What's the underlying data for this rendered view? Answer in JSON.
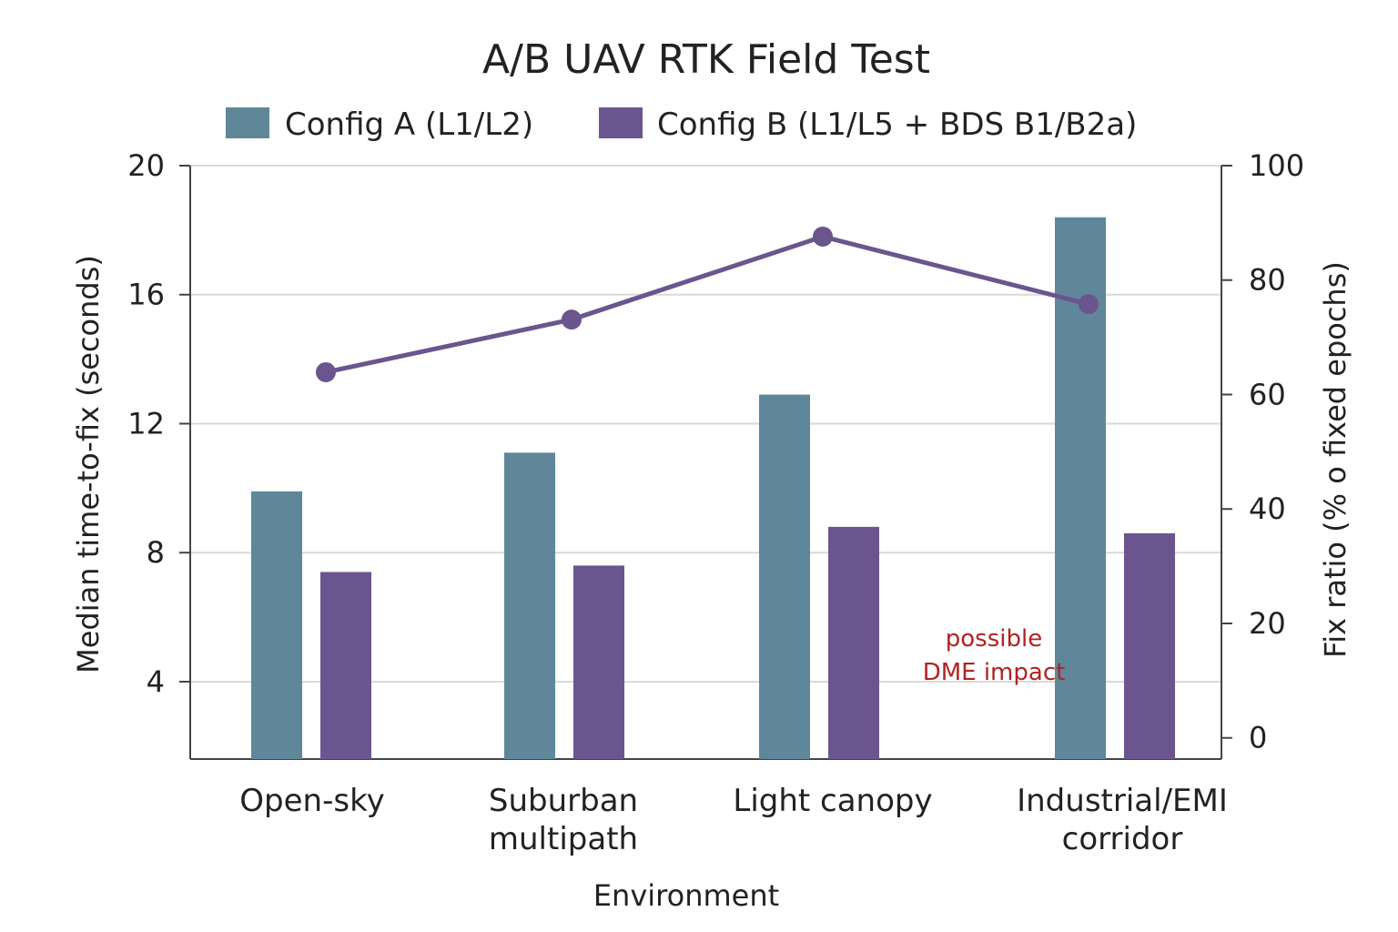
{
  "chart_data": {
    "type": "bar",
    "title": "A/B UAV RTK Field Test",
    "xlabel": "Environment",
    "ylabel": "Median time-to-fix (seconds)",
    "y2label": "Fix ratio (% o fixed epochs)",
    "categories": [
      [
        "Open-sky"
      ],
      [
        "Suburban",
        "multipath"
      ],
      [
        "Light canopy"
      ],
      [
        "Industrial/EMI",
        "corridor"
      ]
    ],
    "series": [
      {
        "name": "Config A (L1/L2)",
        "type": "bar",
        "axis": "left",
        "color": "#5f8799",
        "values": [
          9.9,
          11.1,
          12.9,
          18.4
        ]
      },
      {
        "name": "Config B (L1/L5 + BDS B1/B2a)",
        "type": "bar",
        "axis": "left",
        "color": "#6b558e",
        "values": [
          7.4,
          7.6,
          8.8,
          8.6
        ]
      },
      {
        "type": "line",
        "axis": "right",
        "color": "#6b558e",
        "values": [
          63.9,
          73.1,
          87.6,
          75.8
        ]
      }
    ],
    "ylim": [
      1.6,
      20
    ],
    "y2lim": [
      -3.7,
      100
    ],
    "yticks": [
      4,
      8,
      12,
      16,
      20
    ],
    "y2ticks": [
      0,
      20,
      40,
      60,
      80,
      100
    ],
    "annotation": {
      "lines": [
        "possible",
        "DME impact"
      ],
      "category": 3,
      "color": "#b22222"
    },
    "grid": true,
    "legend": "top"
  }
}
